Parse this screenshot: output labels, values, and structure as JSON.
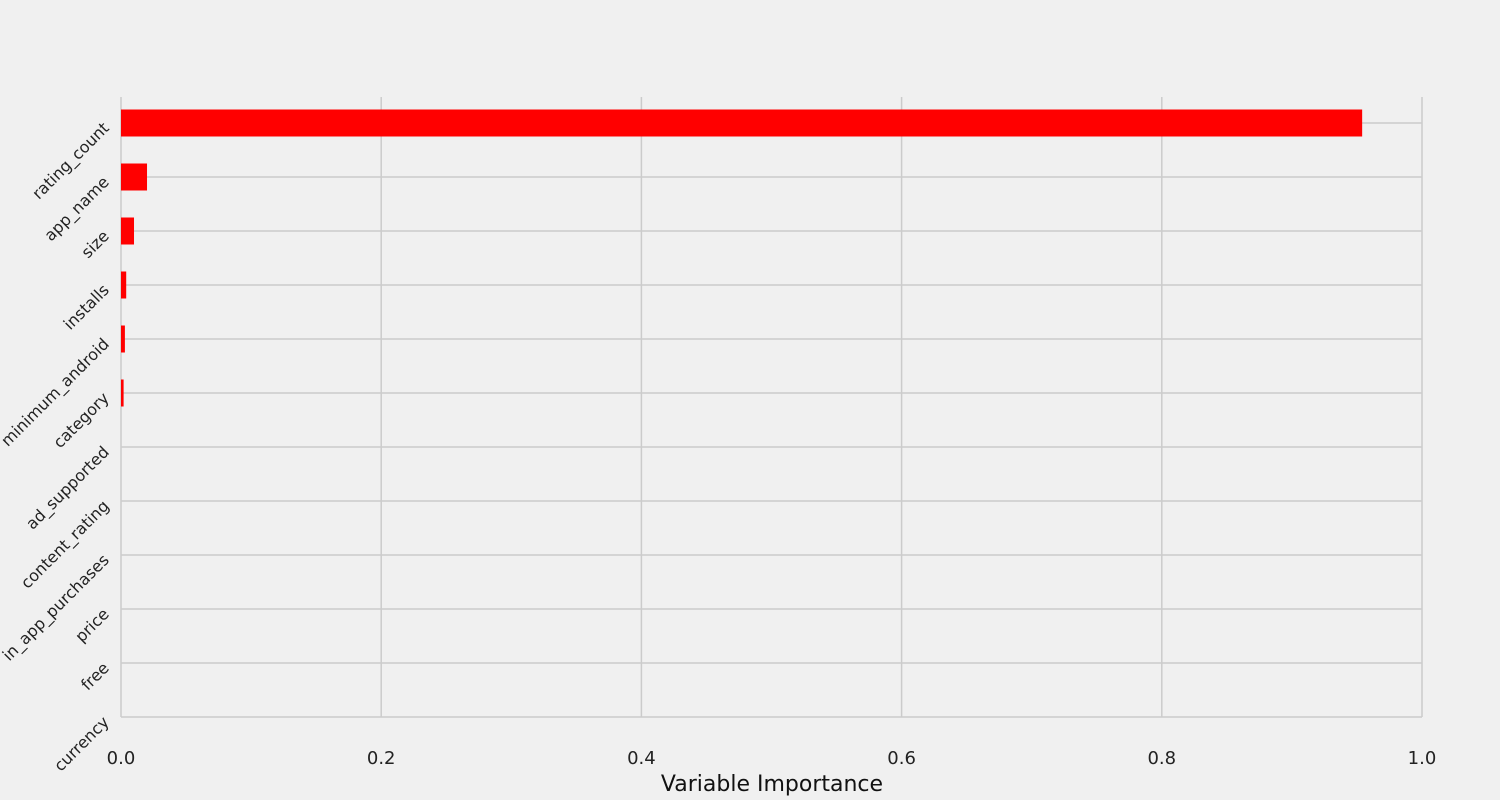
{
  "chart_data": {
    "type": "bar",
    "orientation": "horizontal",
    "title": "",
    "xlabel": "Variable Importance",
    "ylabel": "",
    "xlim": [
      0,
      1.0
    ],
    "xticks": [
      0.0,
      0.2,
      0.4,
      0.6,
      0.8,
      1.0
    ],
    "xtick_labels": [
      "0.0",
      "0.2",
      "0.4",
      "0.6",
      "0.8",
      "1.0"
    ],
    "grid": true,
    "bar_color": "#ff0000",
    "background_color": "#f0f0f0",
    "grid_color": "#cbcbcb",
    "categories": [
      "rating_count",
      "app_name",
      "size",
      "installs",
      "minimum_android",
      "category",
      "ad_supported",
      "content_rating",
      "in_app_purchases",
      "price",
      "free",
      "currency"
    ],
    "values": [
      0.954,
      0.02,
      0.01,
      0.004,
      0.003,
      0.002,
      0.0,
      0.0,
      0.0,
      0.0,
      0.0,
      0.0
    ]
  }
}
